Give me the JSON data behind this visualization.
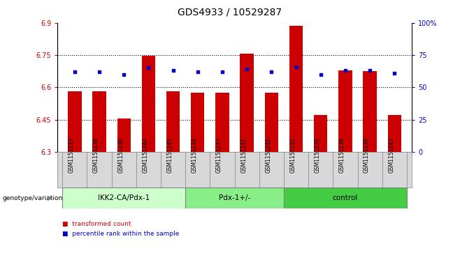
{
  "title": "GDS4933 / 10529287",
  "samples": [
    "GSM1151233",
    "GSM1151238",
    "GSM1151240",
    "GSM1151244",
    "GSM1151245",
    "GSM1151234",
    "GSM1151237",
    "GSM1151241",
    "GSM1151242",
    "GSM1151232",
    "GSM1151235",
    "GSM1151236",
    "GSM1151239",
    "GSM1151243"
  ],
  "bar_values": [
    6.58,
    6.58,
    6.455,
    6.745,
    6.58,
    6.575,
    6.575,
    6.755,
    6.575,
    6.885,
    6.47,
    6.68,
    6.675,
    6.47
  ],
  "dot_values": [
    62,
    62,
    60,
    65,
    63,
    62,
    62,
    64,
    62,
    66,
    60,
    63,
    63,
    61
  ],
  "ylim": [
    6.3,
    6.9
  ],
  "yticks": [
    6.3,
    6.45,
    6.6,
    6.75,
    6.9
  ],
  "right_ylim": [
    0,
    100
  ],
  "right_yticks": [
    0,
    25,
    50,
    75,
    100
  ],
  "right_yticklabels": [
    "0",
    "25",
    "50",
    "75",
    "100%"
  ],
  "hlines": [
    6.45,
    6.6,
    6.75
  ],
  "bar_color": "#cc0000",
  "dot_color": "#0000cc",
  "bar_bottom": 6.3,
  "groups": [
    {
      "label": "IKK2-CA/Pdx-1",
      "start": 0,
      "end": 5,
      "color": "#ccffcc"
    },
    {
      "label": "Pdx-1+/-",
      "start": 5,
      "end": 9,
      "color": "#88ee88"
    },
    {
      "label": "control",
      "start": 9,
      "end": 14,
      "color": "#44cc44"
    }
  ],
  "genotype_label": "genotype/variation",
  "legend_items": [
    {
      "label": "transformed count",
      "color": "#cc0000"
    },
    {
      "label": "percentile rank within the sample",
      "color": "#0000cc"
    }
  ],
  "sample_bg_color": "#d8d8d8",
  "plot_bg_color": "#ffffff",
  "title_fontsize": 10,
  "tick_fontsize": 7,
  "label_fontsize": 7.5
}
